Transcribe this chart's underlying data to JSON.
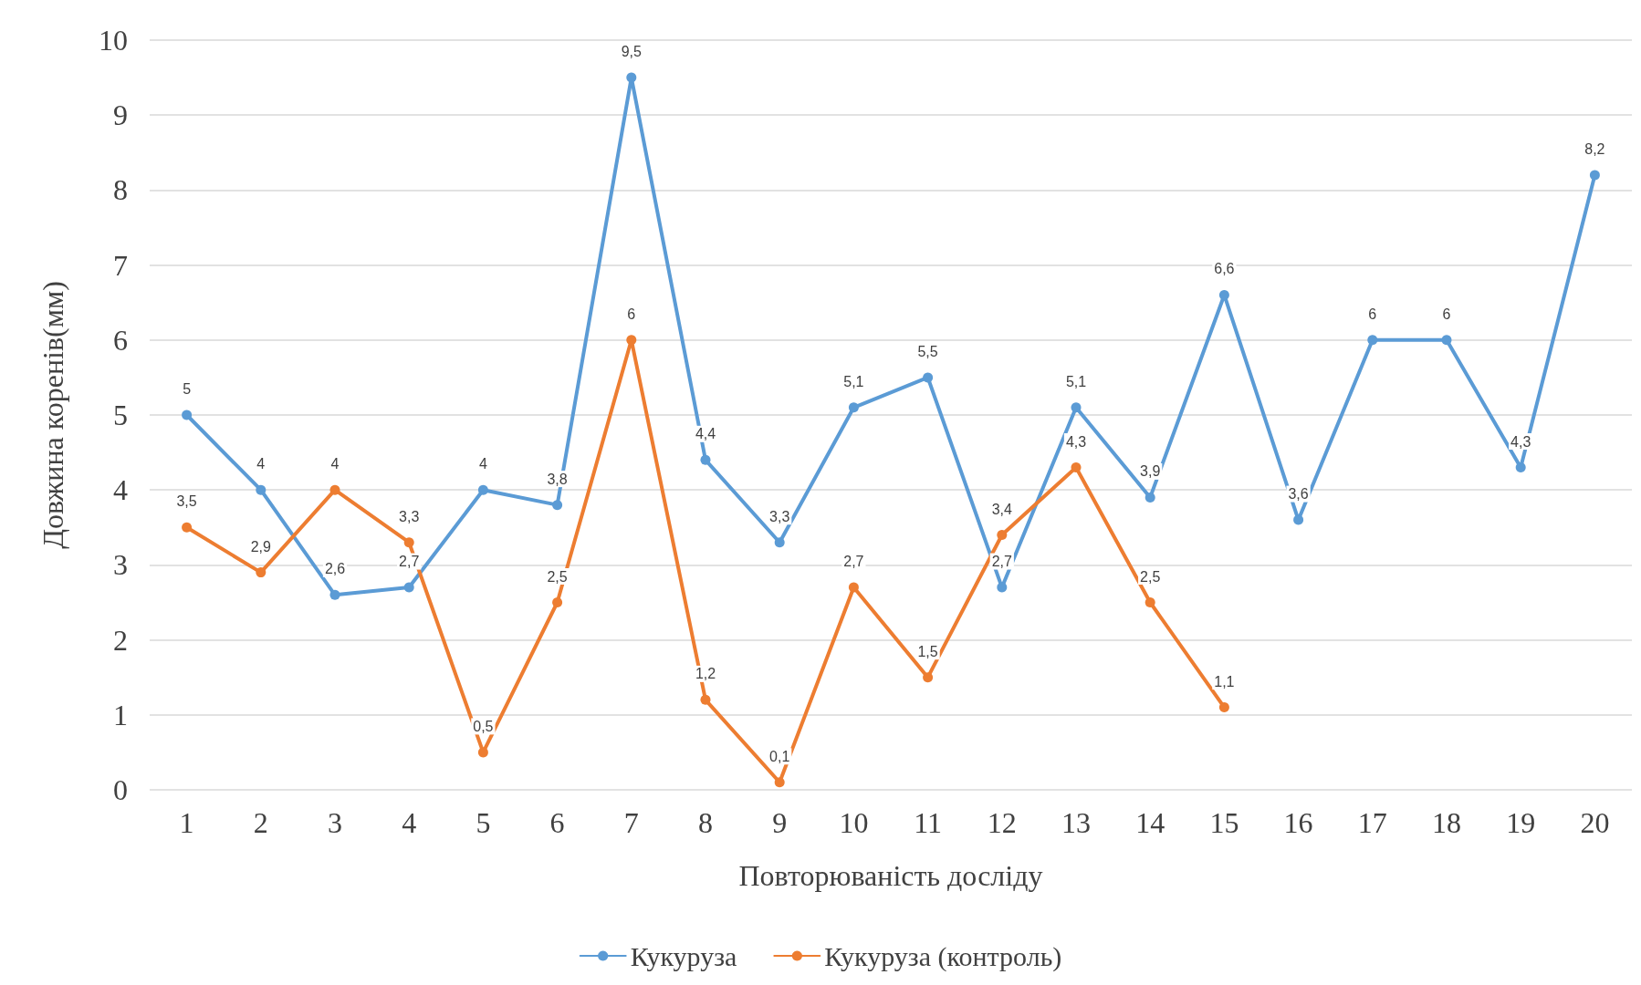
{
  "chart_data": {
    "type": "line",
    "xlabel": "Повторюваність досліду",
    "ylabel": "Довжина коренів(мм)",
    "categories": [
      "1",
      "2",
      "3",
      "4",
      "5",
      "6",
      "7",
      "8",
      "9",
      "10",
      "11",
      "12",
      "13",
      "14",
      "15",
      "16",
      "17",
      "18",
      "19",
      "20"
    ],
    "series": [
      {
        "name": "Кукуруза",
        "color": "#5b9bd5",
        "values": [
          5,
          4,
          2.6,
          2.7,
          4,
          3.8,
          9.5,
          4.4,
          3.3,
          5.1,
          5.5,
          2.7,
          5.1,
          3.9,
          6.6,
          3.6,
          6,
          6,
          4.3,
          8.2
        ],
        "value_labels": [
          "5",
          "4",
          "2,6",
          "2,7",
          "4",
          "3,8",
          "9,5",
          "4,4",
          "3,3",
          "5,1",
          "5,5",
          "2,7",
          "5,1",
          "3,9",
          "6,6",
          "3,6",
          "6",
          "6",
          "4,3",
          "8,2"
        ]
      },
      {
        "name": "Кукуруза (контроль)",
        "color": "#ed7d31",
        "values": [
          3.5,
          2.9,
          4,
          3.3,
          0.5,
          2.5,
          6,
          1.2,
          0.1,
          2.7,
          1.5,
          3.4,
          4.3,
          2.5,
          1.1,
          null,
          null,
          null,
          null,
          null
        ],
        "value_labels": [
          "3,5",
          "2,9",
          "4",
          "3,3",
          "0,5",
          "2,5",
          "6",
          "1,2",
          "0,1",
          "2,7",
          "1,5",
          "3,4",
          "4,3",
          "2,5",
          "1,1",
          null,
          null,
          null,
          null,
          null
        ]
      }
    ],
    "ylim": [
      0,
      10
    ],
    "yticks": [
      0,
      1,
      2,
      3,
      4,
      5,
      6,
      7,
      8,
      9,
      10
    ],
    "grid": "y",
    "legend": "bottom",
    "marker": "circle",
    "line_style": "solid"
  }
}
